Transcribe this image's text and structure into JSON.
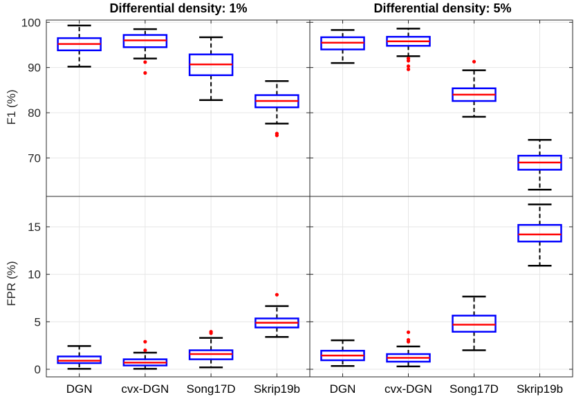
{
  "chart_data": {
    "type": "boxplot",
    "categories": [
      "DGN",
      "cvx-DGN",
      "Song17D",
      "Skrip19b"
    ],
    "columns": [
      {
        "title": "Differential density: 1%"
      },
      {
        "title": "Differential density: 5%"
      }
    ],
    "rows": [
      {
        "ylabel": "F1 (%)",
        "ylim": [
          61.5,
          100.5
        ],
        "yticks": [
          70,
          80,
          90,
          100
        ]
      },
      {
        "ylabel": "FPR (%)",
        "ylim": [
          -0.8,
          18.2
        ],
        "yticks": [
          0,
          5,
          10,
          15
        ]
      }
    ],
    "panels": [
      {
        "row": 0,
        "col": 0,
        "boxes": [
          {
            "category": "DGN",
            "whisker_low": 90.2,
            "q1": 93.8,
            "median": 95.2,
            "q3": 96.5,
            "whisker_high": 99.3,
            "outliers": []
          },
          {
            "category": "cvx-DGN",
            "whisker_low": 92.0,
            "q1": 94.5,
            "median": 96.0,
            "q3": 97.2,
            "whisker_high": 98.5,
            "outliers": [
              91.2,
              88.8
            ]
          },
          {
            "category": "Song17D",
            "whisker_low": 82.8,
            "q1": 88.3,
            "median": 90.7,
            "q3": 92.9,
            "whisker_high": 96.7,
            "outliers": []
          },
          {
            "category": "Skrip19b",
            "whisker_low": 77.6,
            "q1": 81.2,
            "median": 82.6,
            "q3": 83.9,
            "whisker_high": 87.0,
            "outliers": [
              75.4,
              75.0
            ]
          }
        ]
      },
      {
        "row": 0,
        "col": 1,
        "boxes": [
          {
            "category": "DGN",
            "whisker_low": 91.0,
            "q1": 94.0,
            "median": 95.5,
            "q3": 96.7,
            "whisker_high": 98.3,
            "outliers": []
          },
          {
            "category": "cvx-DGN",
            "whisker_low": 92.5,
            "q1": 94.8,
            "median": 95.8,
            "q3": 96.8,
            "whisker_high": 98.6,
            "outliers": [
              92.0,
              91.5,
              90.3,
              89.6
            ]
          },
          {
            "category": "Song17D",
            "whisker_low": 79.1,
            "q1": 82.6,
            "median": 84.0,
            "q3": 85.4,
            "whisker_high": 89.4,
            "outliers": [
              91.3
            ]
          },
          {
            "category": "Skrip19b",
            "whisker_low": 63.0,
            "q1": 67.4,
            "median": 69.0,
            "q3": 70.5,
            "whisker_high": 74.0,
            "outliers": []
          }
        ]
      },
      {
        "row": 1,
        "col": 0,
        "boxes": [
          {
            "category": "DGN",
            "whisker_low": 0.05,
            "q1": 0.65,
            "median": 0.9,
            "q3": 1.35,
            "whisker_high": 2.45,
            "outliers": []
          },
          {
            "category": "cvx-DGN",
            "whisker_low": 0.05,
            "q1": 0.4,
            "median": 0.7,
            "q3": 1.05,
            "whisker_high": 1.75,
            "outliers": [
              2.9,
              2.0
            ]
          },
          {
            "category": "Song17D",
            "whisker_low": 0.2,
            "q1": 1.05,
            "median": 1.6,
            "q3": 2.0,
            "whisker_high": 3.3,
            "outliers": [
              3.95,
              3.8
            ]
          },
          {
            "category": "Skrip19b",
            "whisker_low": 3.4,
            "q1": 4.4,
            "median": 4.9,
            "q3": 5.35,
            "whisker_high": 6.65,
            "outliers": [
              7.85
            ]
          }
        ]
      },
      {
        "row": 1,
        "col": 1,
        "boxes": [
          {
            "category": "DGN",
            "whisker_low": 0.35,
            "q1": 0.95,
            "median": 1.45,
            "q3": 1.95,
            "whisker_high": 3.05,
            "outliers": []
          },
          {
            "category": "cvx-DGN",
            "whisker_low": 0.3,
            "q1": 0.8,
            "median": 1.2,
            "q3": 1.6,
            "whisker_high": 2.4,
            "outliers": [
              3.9,
              3.1,
              2.9
            ]
          },
          {
            "category": "Song17D",
            "whisker_low": 2.0,
            "q1": 3.95,
            "median": 4.7,
            "q3": 5.65,
            "whisker_high": 7.65,
            "outliers": []
          },
          {
            "category": "Skrip19b",
            "whisker_low": 10.9,
            "q1": 13.45,
            "median": 14.2,
            "q3": 15.2,
            "whisker_high": 17.35,
            "outliers": []
          }
        ]
      }
    ],
    "colors": {
      "box": "#0000ff",
      "median": "#ff0000",
      "whisker": "#000000",
      "outlier": "#ff0000",
      "grid": "#e6e6e6",
      "axis": "#262626"
    },
    "grid": true
  }
}
